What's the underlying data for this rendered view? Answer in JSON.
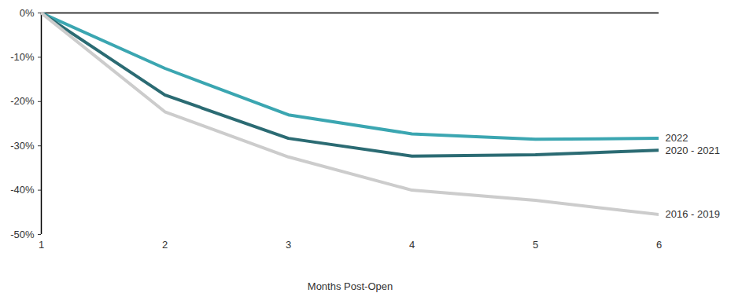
{
  "chart_data": {
    "type": "line",
    "x_label": "Months Post-Open",
    "x": [
      1,
      2,
      3,
      4,
      5,
      6
    ],
    "series": [
      {
        "name": "2022",
        "color": "#3ba6b1",
        "values": [
          0,
          -12.5,
          -23,
          -27.3,
          -28.5,
          -28.3
        ]
      },
      {
        "name": "2020 - 2021",
        "color": "#2b6b73",
        "values": [
          0,
          -18.5,
          -28.3,
          -32.3,
          -32,
          -31
        ]
      },
      {
        "name": "2016 - 2019",
        "color": "#cccccc",
        "values": [
          0,
          -22.3,
          -32.5,
          -40,
          -42.3,
          -45.5
        ]
      }
    ],
    "xlim": [
      1,
      6
    ],
    "ylim": [
      -50,
      0
    ],
    "xticks": [
      1,
      2,
      3,
      4,
      5,
      6
    ],
    "yticks": [
      {
        "value": 0,
        "label": "0%"
      },
      {
        "value": -10,
        "label": "-10%"
      },
      {
        "value": -20,
        "label": "-20%"
      },
      {
        "value": -30,
        "label": "-30%"
      },
      {
        "value": -40,
        "label": "-40%"
      },
      {
        "value": -50,
        "label": "-50%"
      }
    ],
    "grid": false
  }
}
